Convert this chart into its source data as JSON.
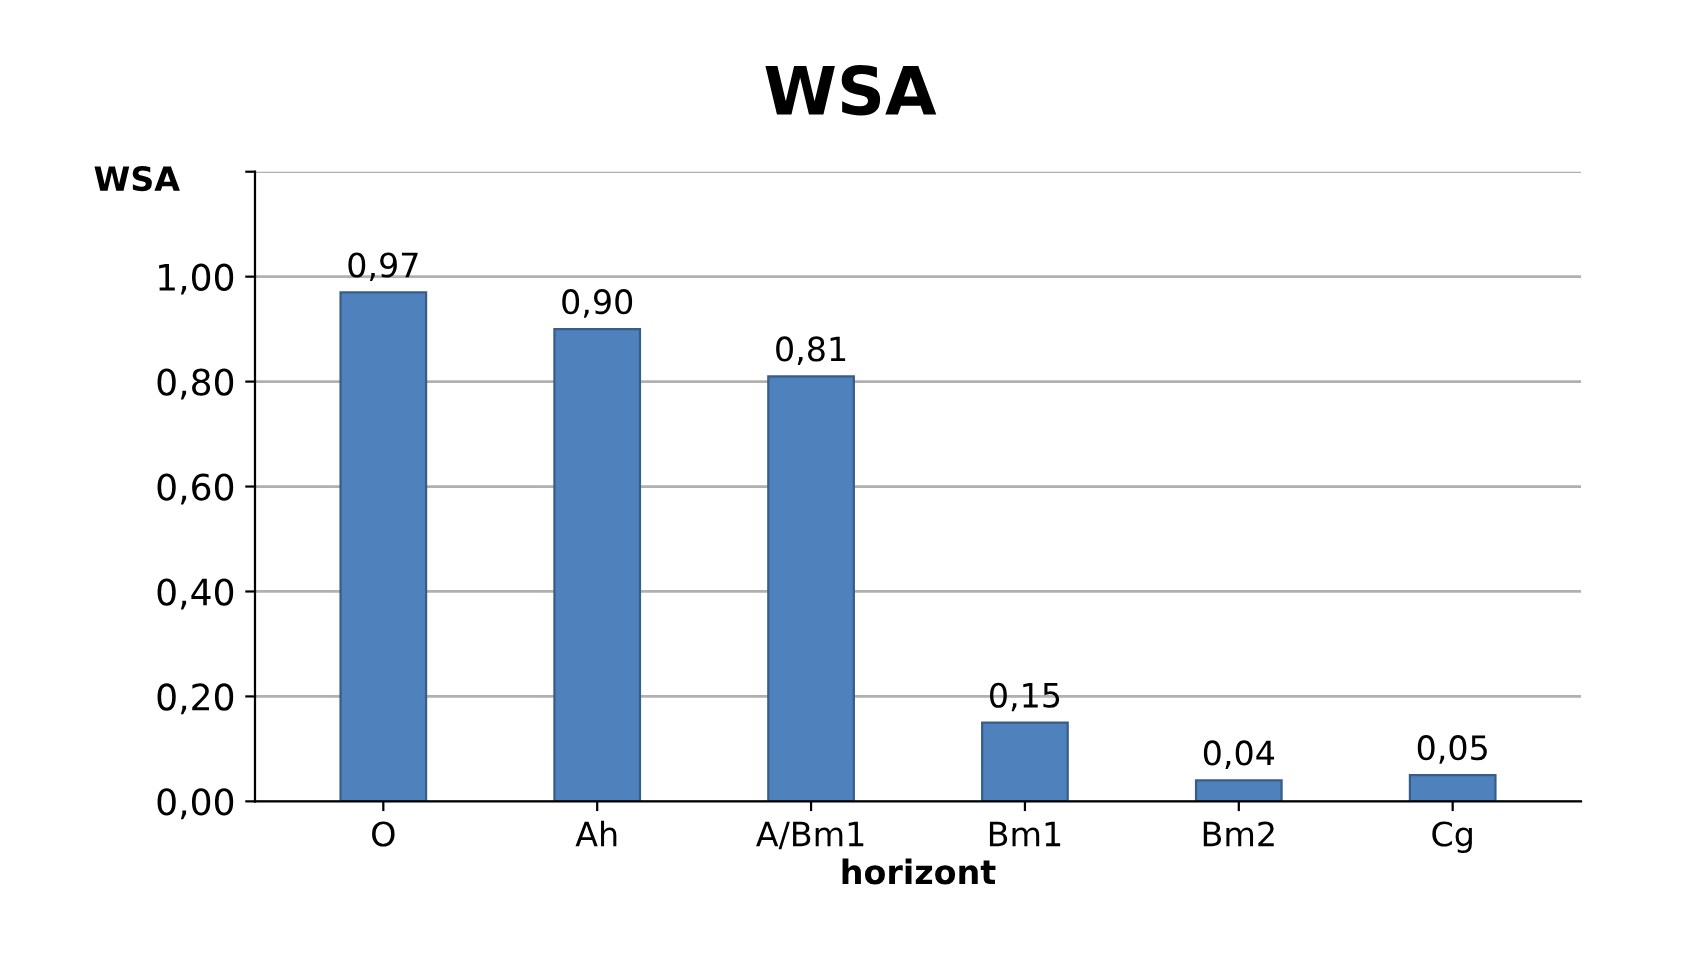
{
  "chart_data": {
    "type": "bar",
    "title": "WSA",
    "ylabel": "WSA",
    "xlabel": "horizont",
    "categories": [
      "O",
      "Ah",
      "A/Bm1",
      "Bm1",
      "Bm2",
      "Cg"
    ],
    "values": [
      0.97,
      0.9,
      0.81,
      0.15,
      0.04,
      0.05
    ],
    "value_labels": [
      "0,97",
      "0,90",
      "0,81",
      "0,15",
      "0,04",
      "0,05"
    ],
    "color": "#4f81bd",
    "ylim": [
      0,
      1.2
    ],
    "yticks": [
      {
        "value": 0,
        "label": "0,00"
      },
      {
        "value": 0.2,
        "label": "0,20"
      },
      {
        "value": 0.4,
        "label": "0,40"
      },
      {
        "value": 0.6,
        "label": "0,60"
      },
      {
        "value": 0.8,
        "label": "0,80"
      },
      {
        "value": 1.0,
        "label": "1,00"
      },
      {
        "value": 1.2,
        "label": null
      }
    ],
    "grid": "y",
    "legend": false
  }
}
